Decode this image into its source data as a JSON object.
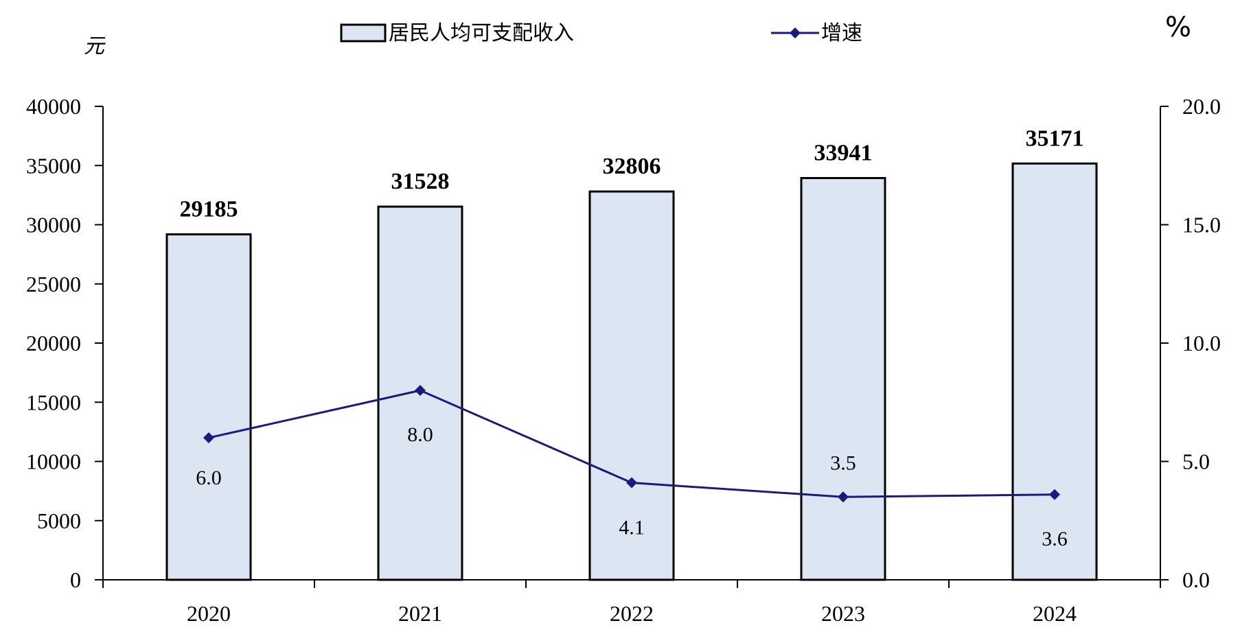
{
  "chart_data": {
    "type": "bar",
    "categories": [
      "2020",
      "2021",
      "2022",
      "2023",
      "2024"
    ],
    "series": [
      {
        "name": "居民人均可支配收入",
        "type": "bar",
        "axis": "left",
        "values": [
          29185,
          31528,
          32806,
          33941,
          35171
        ],
        "labels": [
          "29185",
          "31528",
          "32806",
          "33941",
          "35171"
        ]
      },
      {
        "name": "增速",
        "type": "line",
        "axis": "right",
        "values": [
          6.0,
          8.0,
          4.1,
          3.5,
          3.6
        ],
        "labels": [
          "6.0",
          "8.0",
          "4.1",
          "3.5",
          "3.6"
        ]
      }
    ],
    "left_unit": "元",
    "right_unit": "%",
    "ylim_left": [
      0,
      40000
    ],
    "ylim_right": [
      0,
      20
    ],
    "left_ticks": [
      "0",
      "5000",
      "10000",
      "15000",
      "20000",
      "25000",
      "30000",
      "35000",
      "40000"
    ],
    "right_ticks": [
      "0.0",
      "5.0",
      "10.0",
      "15.0",
      "20.0"
    ],
    "legend_position": "top",
    "grid": false,
    "colors": {
      "bar_fill": "#dce6f2",
      "bar_stroke": "#000000",
      "line": "#1a1a80",
      "marker": "#1a1a80"
    }
  }
}
